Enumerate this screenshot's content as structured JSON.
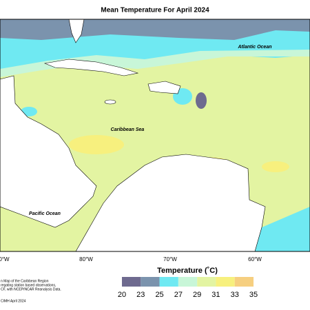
{
  "title": "Mean Temperature For April 2024",
  "map": {
    "labels": [
      "Atlantic Ocean",
      "Caribbean Sea",
      "Pacific Ocean"
    ],
    "longitudes": [
      "0°W",
      "80°W",
      "70°W",
      "60°W"
    ]
  },
  "legend": {
    "title": "Temperature (˚C)",
    "ticks": [
      20,
      23,
      25,
      27,
      29,
      31,
      33,
      35
    ],
    "colors": [
      "#6e6a8f",
      "#7b93ad",
      "#6fe9f2",
      "#c8f6d8",
      "#e3f4a2",
      "#f7f07e",
      "#f6cf80"
    ]
  },
  "notes": [
    "n Map of the Caribbean Region",
    "regating station based observations,",
    "CF, with NCEP/NCAR Reanalysis Data.",
    "CIMH April 2024"
  ]
}
